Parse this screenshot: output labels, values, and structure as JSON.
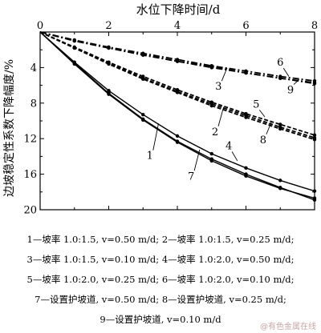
{
  "chart_data": {
    "type": "line",
    "xlabel": "水位下降时间/d",
    "ylabel": "边坡稳定性系数下降幅度/%",
    "xlim": [
      0,
      8
    ],
    "ylim": [
      0,
      20
    ],
    "y_inverted": true,
    "x_axis_position": "top",
    "xticks": [
      "0",
      "2",
      "4",
      "6",
      "8"
    ],
    "yticks": [
      "4",
      "8",
      "12",
      "16",
      "20"
    ],
    "grid": false,
    "series": [
      {
        "name": "1",
        "style": "solid",
        "x": [
          0,
          1,
          2,
          3,
          4,
          5,
          6,
          7,
          8
        ],
        "y": [
          0,
          3.5,
          6.9,
          9.8,
          12.3,
          14.3,
          16.0,
          17.5,
          18.9
        ]
      },
      {
        "name": "4",
        "style": "solid",
        "x": [
          0,
          1,
          2,
          3,
          4,
          5,
          6,
          7,
          8
        ],
        "y": [
          0,
          3.4,
          6.6,
          9.3,
          11.7,
          13.7,
          15.3,
          16.7,
          17.9
        ]
      },
      {
        "name": "7",
        "style": "solid",
        "x": [
          0,
          1,
          2,
          3,
          4,
          5,
          6,
          7,
          8
        ],
        "y": [
          0,
          3.6,
          7.0,
          9.9,
          12.4,
          14.5,
          16.2,
          17.6,
          18.7
        ]
      },
      {
        "name": "2",
        "style": "dashed",
        "x": [
          0,
          1,
          2,
          3,
          4,
          5,
          6,
          7,
          8
        ],
        "y": [
          0,
          1.8,
          3.6,
          5.3,
          6.8,
          8.3,
          9.6,
          10.9,
          12.1
        ]
      },
      {
        "name": "5",
        "style": "dashed",
        "x": [
          0,
          1,
          2,
          3,
          4,
          5,
          6,
          7,
          8
        ],
        "y": [
          0,
          1.7,
          3.4,
          5.0,
          6.5,
          7.9,
          9.2,
          10.4,
          11.6
        ]
      },
      {
        "name": "8",
        "style": "dashed",
        "x": [
          0,
          1,
          2,
          3,
          4,
          5,
          6,
          7,
          8
        ],
        "y": [
          0,
          1.8,
          3.5,
          5.2,
          6.7,
          8.1,
          9.4,
          10.7,
          11.9
        ]
      },
      {
        "name": "3",
        "style": "dashdot",
        "x": [
          0,
          1,
          2,
          3,
          4,
          5,
          6,
          7,
          8
        ],
        "y": [
          0,
          1.0,
          1.8,
          2.5,
          3.3,
          3.9,
          4.6,
          5.2,
          5.8
        ]
      },
      {
        "name": "6",
        "style": "dashdot",
        "x": [
          0,
          1,
          2,
          3,
          4,
          5,
          6,
          7,
          8
        ],
        "y": [
          0,
          0.9,
          1.7,
          2.4,
          3.1,
          3.8,
          4.4,
          5.0,
          5.5
        ]
      },
      {
        "name": "9",
        "style": "dashdot",
        "x": [
          0,
          1,
          2,
          3,
          4,
          5,
          6,
          7,
          8
        ],
        "y": [
          0,
          1.0,
          1.8,
          2.6,
          3.3,
          4.0,
          4.6,
          5.2,
          5.7
        ]
      }
    ],
    "annotations": [
      {
        "text": "6",
        "x": 7.0,
        "y": 3.8
      },
      {
        "text": "3",
        "x": 5.2,
        "y": 6.5
      },
      {
        "text": "9",
        "x": 7.3,
        "y": 6.9
      },
      {
        "text": "5",
        "x": 6.3,
        "y": 8.5
      },
      {
        "text": "2",
        "x": 5.1,
        "y": 11.6
      },
      {
        "text": "8",
        "x": 6.5,
        "y": 12.5
      },
      {
        "text": "4",
        "x": 5.5,
        "y": 13.2
      },
      {
        "text": "1",
        "x": 3.2,
        "y": 14.3
      },
      {
        "text": "7",
        "x": 4.4,
        "y": 16.6
      }
    ]
  },
  "legend": [
    "1—坡率 1.0:1.5, v=0.50 m/d; 2—坡率 1.0:1.5, v=0.25 m/d;",
    "3—坡率 1.0:1.5, v=0.10 m/d; 4—坡率 1.0:2.0, v=0.50 m/d;",
    "5—坡率 1.0:2.0, v=0.25 m/d; 6—坡率 1.0:2.0, v=0.10 m/d;",
    "7—设置护坡道, v=0.50 m/d; 8—设置护坡道, v=0.25 m/d;",
    "9—设置护坡道, v=0.10 m/d"
  ],
  "watermark": "@有色金属在线"
}
